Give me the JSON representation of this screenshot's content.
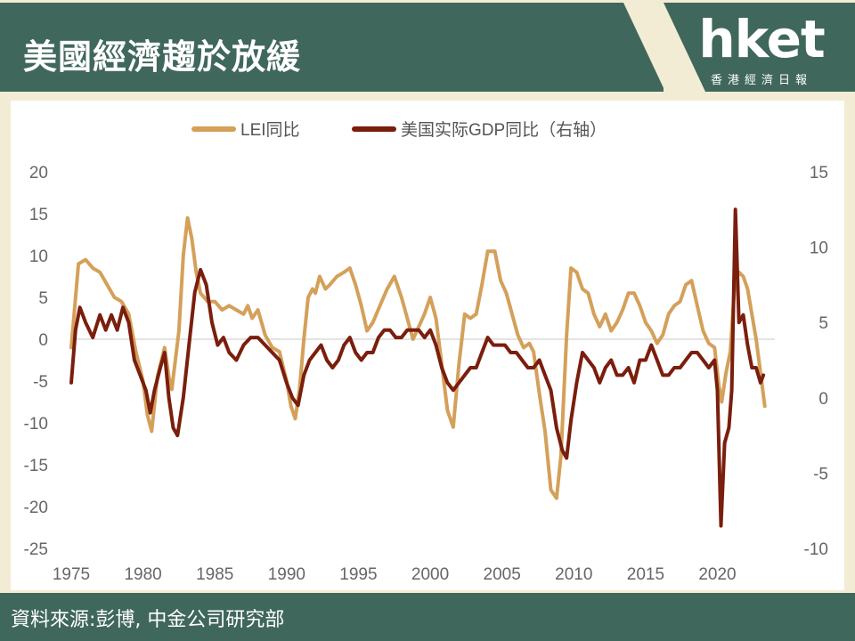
{
  "header": {
    "title": "美國經濟趨於放緩",
    "logo": "hket",
    "logo_subtitle": "香港經濟日報"
  },
  "footer": {
    "source": "資料來源:彭博, 中金公司研究部"
  },
  "colors": {
    "header_bg": "#40675c",
    "header_accent": "#f3ecd5",
    "lei": "#d4a05a",
    "gdp": "#7a1e0d"
  },
  "chart_data": {
    "type": "line",
    "title": "",
    "legend_position": "top",
    "x_ticks": [
      "1975",
      "1980",
      "1985",
      "1990",
      "1995",
      "2000",
      "2005",
      "2010",
      "2015",
      "2020"
    ],
    "y_left_ticks": [
      "20",
      "15",
      "10",
      "5",
      "0",
      "-5",
      "-10",
      "-15",
      "-20",
      "-25"
    ],
    "y_right_ticks": [
      "15",
      "10",
      "5",
      "0",
      "-5",
      "-10"
    ],
    "y_left_range": [
      -25,
      20
    ],
    "y_right_range": [
      -10,
      15
    ],
    "x_range": [
      1975,
      2024
    ],
    "zero_line": true,
    "series": [
      {
        "name": "LEI同比",
        "axis": "left",
        "color": "#d4a05a",
        "points": [
          [
            1975.0,
            -1
          ],
          [
            1975.5,
            9
          ],
          [
            1976.0,
            9.5
          ],
          [
            1976.5,
            8.5
          ],
          [
            1977.0,
            8
          ],
          [
            1977.5,
            6.5
          ],
          [
            1978.0,
            5
          ],
          [
            1978.5,
            4.5
          ],
          [
            1979.0,
            3
          ],
          [
            1979.5,
            -1.5
          ],
          [
            1980.0,
            -5
          ],
          [
            1980.3,
            -9
          ],
          [
            1980.6,
            -11
          ],
          [
            1981.0,
            -4.5
          ],
          [
            1981.5,
            -1
          ],
          [
            1981.8,
            -4.5
          ],
          [
            1982.0,
            -6
          ],
          [
            1982.5,
            1
          ],
          [
            1982.8,
            10
          ],
          [
            1983.1,
            14.5
          ],
          [
            1983.4,
            12
          ],
          [
            1983.7,
            8
          ],
          [
            1984.0,
            5.5
          ],
          [
            1984.5,
            4.5
          ],
          [
            1985.0,
            4.5
          ],
          [
            1985.5,
            3.5
          ],
          [
            1986.0,
            4
          ],
          [
            1986.5,
            3.5
          ],
          [
            1987.0,
            3
          ],
          [
            1987.3,
            4
          ],
          [
            1987.6,
            2.5
          ],
          [
            1988.0,
            3.5
          ],
          [
            1988.5,
            0.5
          ],
          [
            1989.0,
            -1
          ],
          [
            1989.5,
            -1.5
          ],
          [
            1990.0,
            -5
          ],
          [
            1990.3,
            -8
          ],
          [
            1990.6,
            -9.5
          ],
          [
            1990.9,
            -6
          ],
          [
            1991.2,
            0
          ],
          [
            1991.5,
            5
          ],
          [
            1991.8,
            6
          ],
          [
            1992.0,
            5.5
          ],
          [
            1992.3,
            7.5
          ],
          [
            1992.7,
            6
          ],
          [
            1993.0,
            6.5
          ],
          [
            1993.5,
            7.5
          ],
          [
            1994.0,
            8
          ],
          [
            1994.4,
            8.5
          ],
          [
            1994.8,
            6.5
          ],
          [
            1995.2,
            4
          ],
          [
            1995.6,
            1
          ],
          [
            1996.0,
            2
          ],
          [
            1996.5,
            4
          ],
          [
            1997.0,
            6
          ],
          [
            1997.5,
            7.5
          ],
          [
            1998.0,
            5
          ],
          [
            1998.4,
            2.5
          ],
          [
            1998.8,
            0
          ],
          [
            1999.2,
            1.5
          ],
          [
            1999.6,
            3
          ],
          [
            2000.0,
            5
          ],
          [
            2000.4,
            2.5
          ],
          [
            2000.8,
            -3
          ],
          [
            2001.2,
            -8.5
          ],
          [
            2001.6,
            -10.5
          ],
          [
            2002.0,
            -3
          ],
          [
            2002.4,
            3
          ],
          [
            2002.8,
            2.5
          ],
          [
            2003.2,
            3
          ],
          [
            2003.6,
            6.5
          ],
          [
            2004.0,
            10.5
          ],
          [
            2004.5,
            10.5
          ],
          [
            2004.9,
            7
          ],
          [
            2005.3,
            5.5
          ],
          [
            2005.7,
            3
          ],
          [
            2006.1,
            0.5
          ],
          [
            2006.5,
            -1
          ],
          [
            2006.9,
            -0.5
          ],
          [
            2007.2,
            -1.5
          ],
          [
            2007.6,
            -6.5
          ],
          [
            2008.0,
            -11
          ],
          [
            2008.4,
            -18
          ],
          [
            2008.8,
            -19
          ],
          [
            2009.1,
            -14
          ],
          [
            2009.5,
            0.5
          ],
          [
            2009.8,
            8.5
          ],
          [
            2010.2,
            8
          ],
          [
            2010.6,
            6
          ],
          [
            2011.0,
            5.5
          ],
          [
            2011.4,
            3
          ],
          [
            2011.8,
            1.5
          ],
          [
            2012.2,
            3
          ],
          [
            2012.6,
            1
          ],
          [
            2013.0,
            2
          ],
          [
            2013.4,
            3.5
          ],
          [
            2013.8,
            5.5
          ],
          [
            2014.2,
            5.5
          ],
          [
            2014.6,
            4
          ],
          [
            2015.0,
            2
          ],
          [
            2015.4,
            1
          ],
          [
            2015.8,
            -0.5
          ],
          [
            2016.2,
            0.5
          ],
          [
            2016.6,
            3
          ],
          [
            2017.0,
            4
          ],
          [
            2017.4,
            4.5
          ],
          [
            2017.8,
            6.5
          ],
          [
            2018.2,
            7
          ],
          [
            2018.6,
            4
          ],
          [
            2019.0,
            1
          ],
          [
            2019.4,
            -0.5
          ],
          [
            2019.8,
            -1
          ],
          [
            2020.1,
            -5.5
          ],
          [
            2020.3,
            -7.5
          ],
          [
            2020.6,
            -4
          ],
          [
            2020.9,
            -1.5
          ],
          [
            2021.2,
            6.5
          ],
          [
            2021.5,
            8
          ],
          [
            2021.8,
            7.5
          ],
          [
            2022.1,
            6
          ],
          [
            2022.4,
            3
          ],
          [
            2022.7,
            0
          ],
          [
            2023.0,
            -4
          ],
          [
            2023.3,
            -8
          ]
        ]
      },
      {
        "name": "美国实际GDP同比（右轴）",
        "axis": "right",
        "color": "#7a1e0d",
        "points": [
          [
            1975.0,
            1
          ],
          [
            1975.3,
            4.5
          ],
          [
            1975.6,
            6
          ],
          [
            1976.0,
            5
          ],
          [
            1976.5,
            4
          ],
          [
            1977.0,
            5.5
          ],
          [
            1977.4,
            4.5
          ],
          [
            1977.8,
            5.5
          ],
          [
            1978.2,
            4.5
          ],
          [
            1978.6,
            6
          ],
          [
            1979.0,
            5
          ],
          [
            1979.4,
            2.5
          ],
          [
            1979.8,
            1.5
          ],
          [
            1980.2,
            0.5
          ],
          [
            1980.5,
            -1
          ],
          [
            1980.8,
            0.5
          ],
          [
            1981.2,
            2
          ],
          [
            1981.5,
            3
          ],
          [
            1981.8,
            0
          ],
          [
            1982.1,
            -2
          ],
          [
            1982.4,
            -2.5
          ],
          [
            1982.8,
            0
          ],
          [
            1983.2,
            3.5
          ],
          [
            1983.6,
            7
          ],
          [
            1984.0,
            8.5
          ],
          [
            1984.4,
            7.5
          ],
          [
            1984.8,
            5
          ],
          [
            1985.2,
            3.5
          ],
          [
            1985.6,
            4
          ],
          [
            1986.0,
            3
          ],
          [
            1986.5,
            2.5
          ],
          [
            1987.0,
            3.5
          ],
          [
            1987.5,
            4
          ],
          [
            1988.0,
            4
          ],
          [
            1988.5,
            3.5
          ],
          [
            1989.0,
            3
          ],
          [
            1989.5,
            2.5
          ],
          [
            1990.0,
            1
          ],
          [
            1990.4,
            0
          ],
          [
            1990.8,
            -0.5
          ],
          [
            1991.2,
            1.5
          ],
          [
            1991.6,
            2.5
          ],
          [
            1992.0,
            3
          ],
          [
            1992.4,
            3.5
          ],
          [
            1992.8,
            2.5
          ],
          [
            1993.2,
            2
          ],
          [
            1993.6,
            2.5
          ],
          [
            1994.0,
            3.5
          ],
          [
            1994.4,
            4
          ],
          [
            1994.8,
            3
          ],
          [
            1995.2,
            2.5
          ],
          [
            1995.6,
            3
          ],
          [
            1996.0,
            3
          ],
          [
            1996.4,
            4
          ],
          [
            1996.8,
            4.5
          ],
          [
            1997.2,
            4.5
          ],
          [
            1997.6,
            4
          ],
          [
            1998.0,
            4
          ],
          [
            1998.4,
            4.5
          ],
          [
            1998.8,
            4.5
          ],
          [
            1999.2,
            4.5
          ],
          [
            1999.6,
            4
          ],
          [
            2000.0,
            4.5
          ],
          [
            2000.4,
            3.5
          ],
          [
            2000.8,
            2
          ],
          [
            2001.2,
            1
          ],
          [
            2001.6,
            0.5
          ],
          [
            2002.0,
            1
          ],
          [
            2002.4,
            1.5
          ],
          [
            2002.8,
            2
          ],
          [
            2003.2,
            2
          ],
          [
            2003.6,
            3
          ],
          [
            2004.0,
            4
          ],
          [
            2004.4,
            3.5
          ],
          [
            2004.8,
            3.5
          ],
          [
            2005.2,
            3.5
          ],
          [
            2005.6,
            3
          ],
          [
            2006.0,
            3
          ],
          [
            2006.4,
            2.5
          ],
          [
            2006.8,
            2
          ],
          [
            2007.2,
            2
          ],
          [
            2007.6,
            2.5
          ],
          [
            2008.0,
            1.5
          ],
          [
            2008.4,
            0.5
          ],
          [
            2008.8,
            -2
          ],
          [
            2009.2,
            -3.5
          ],
          [
            2009.5,
            -4
          ],
          [
            2009.8,
            -1.5
          ],
          [
            2010.2,
            1
          ],
          [
            2010.6,
            3
          ],
          [
            2011.0,
            2.5
          ],
          [
            2011.4,
            2
          ],
          [
            2011.8,
            1
          ],
          [
            2012.2,
            2
          ],
          [
            2012.6,
            2.5
          ],
          [
            2013.0,
            1.5
          ],
          [
            2013.4,
            1.5
          ],
          [
            2013.8,
            2
          ],
          [
            2014.2,
            1
          ],
          [
            2014.6,
            2.5
          ],
          [
            2015.0,
            2.5
          ],
          [
            2015.4,
            3.5
          ],
          [
            2015.8,
            2.5
          ],
          [
            2016.2,
            1.5
          ],
          [
            2016.6,
            1.5
          ],
          [
            2017.0,
            2
          ],
          [
            2017.4,
            2
          ],
          [
            2017.8,
            2.5
          ],
          [
            2018.2,
            3
          ],
          [
            2018.6,
            3
          ],
          [
            2019.0,
            2.5
          ],
          [
            2019.4,
            2
          ],
          [
            2019.8,
            2.5
          ],
          [
            2020.0,
            0.5
          ],
          [
            2020.25,
            -8.5
          ],
          [
            2020.5,
            -3
          ],
          [
            2020.8,
            -2
          ],
          [
            2021.0,
            0.5
          ],
          [
            2021.25,
            12.5
          ],
          [
            2021.5,
            5
          ],
          [
            2021.8,
            5.5
          ],
          [
            2022.1,
            3.5
          ],
          [
            2022.4,
            2
          ],
          [
            2022.7,
            2
          ],
          [
            2023.0,
            1
          ],
          [
            2023.2,
            1.5
          ]
        ]
      }
    ]
  }
}
